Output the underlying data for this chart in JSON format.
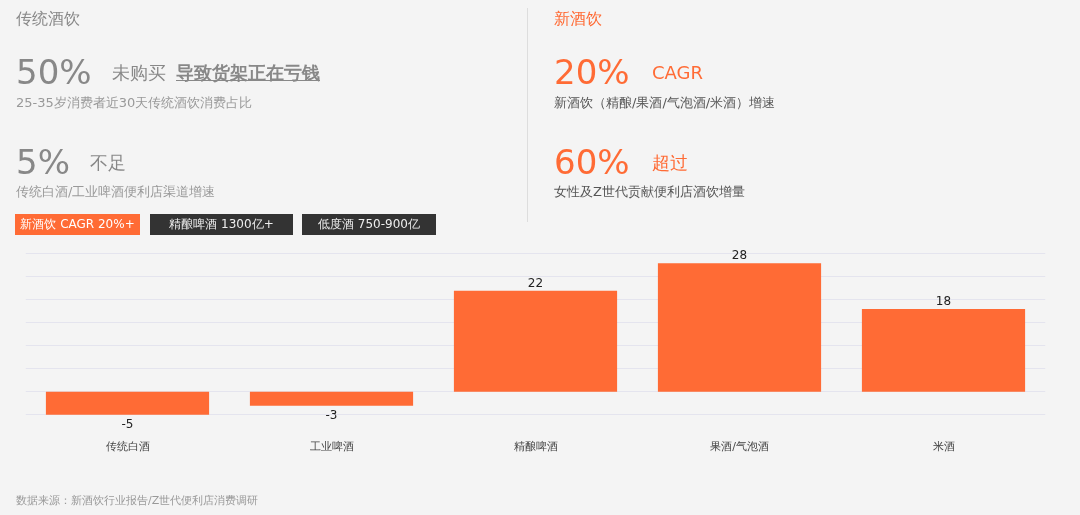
{
  "chart_data": {
    "type": "bar",
    "categories": [
      "传统白酒",
      "工业啤酒",
      "精酿啤酒",
      "果酒/气泡酒",
      "米酒"
    ],
    "values": [
      -5,
      -3,
      22,
      28,
      18
    ],
    "color": "#ff6b35",
    "tick_labels": "x",
    "grid": "y",
    "data_labels": true,
    "annotations": [
      "传统酒饮",
      "50%",
      "未购买",
      "导致货架正在亏钱",
      "25-35岁消费者近30天传统酒饮消费占比",
      "5%",
      "不足",
      "传统白酒/工业啤酒便利店渠道增速",
      "新酒饮 CAGR 20%+",
      "精酿啤酒 1300亿+",
      "低度酒 750-900亿",
      "新酒饮",
      "20%",
      "CAGR",
      "新酒饮（精酿/果酒/气泡酒/米酒）增速",
      "60%",
      "超过",
      "女性及Z世代贡献便利店酒饮增量",
      "数据来源：新酒饮行业报告/Z世代便利店消费调研"
    ]
  }
}
